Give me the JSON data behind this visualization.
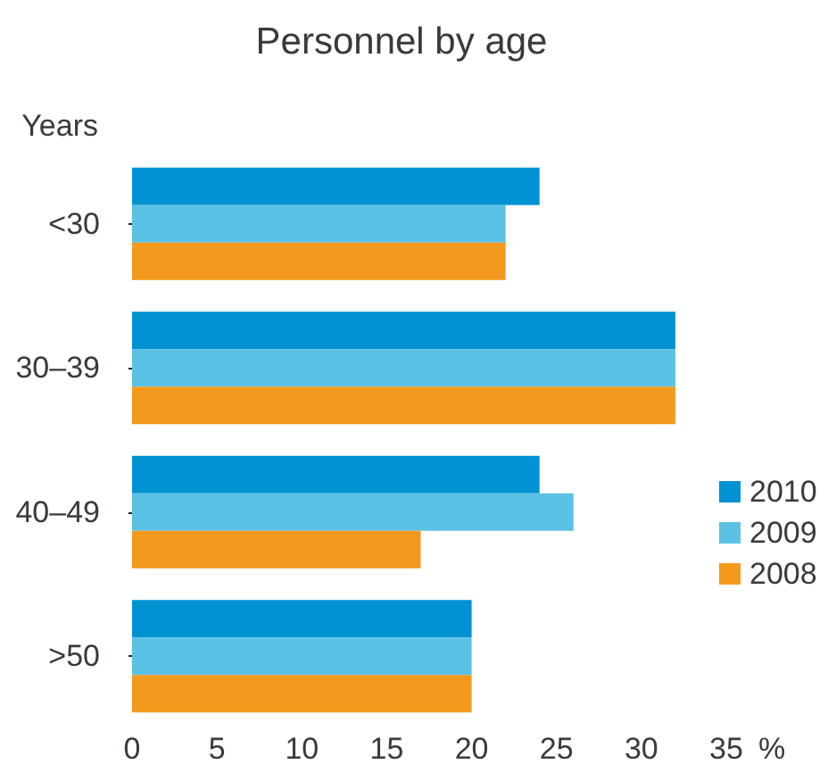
{
  "chart_data": {
    "type": "bar",
    "orientation": "horizontal",
    "title": "Personnel by age",
    "xlabel": "%",
    "ylabel": "Years",
    "categories": [
      "<30",
      "30–39",
      "40–49",
      ">50"
    ],
    "series": [
      {
        "name": "2010",
        "color": "#0092d2",
        "values": [
          24,
          32,
          24,
          20
        ]
      },
      {
        "name": "2009",
        "color": "#5bc1e5",
        "values": [
          22,
          32,
          26,
          20
        ]
      },
      {
        "name": "2008",
        "color": "#f39a1e",
        "values": [
          22,
          32,
          17,
          20
        ]
      }
    ],
    "xlim": [
      0,
      35
    ],
    "xticks": [
      0,
      5,
      10,
      15,
      20,
      25,
      30,
      35
    ],
    "grid": false,
    "legend": "right"
  }
}
